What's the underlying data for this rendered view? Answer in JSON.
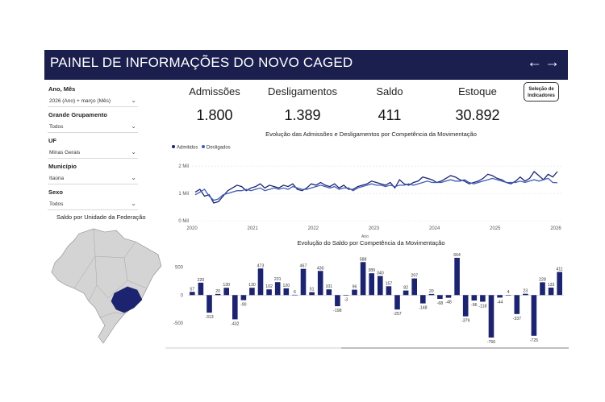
{
  "header": {
    "title": "PAINEL DE INFORMAÇÕES DO NOVO CAGED",
    "back_icon": "←",
    "forward_icon": "→"
  },
  "filters": [
    {
      "label": "Ano, Mês",
      "value": "2026 (Ano) + março (Mês)"
    },
    {
      "label": "Grande Grupamento",
      "value": "Todos"
    },
    {
      "label": "UF",
      "value": "Minas Gerais"
    },
    {
      "label": "Município",
      "value": "Itaúna"
    },
    {
      "label": "Sexo",
      "value": "Todos"
    }
  ],
  "map": {
    "title": "Saldo por Unidade da Federação"
  },
  "kpis": [
    {
      "label": "Admissões",
      "value": "1.800"
    },
    {
      "label": "Desligamentos",
      "value": "1.389"
    },
    {
      "label": "Saldo",
      "value": "411"
    },
    {
      "label": "Estoque",
      "value": "30.892"
    }
  ],
  "selection_button": {
    "label_line1": "Seleção de",
    "label_line2": "Indicadores"
  },
  "colors": {
    "header": "#1a1f4e",
    "admitidos": "#1c2470",
    "desligados": "#3f5cb8",
    "bar": "#1c2470",
    "map_fill": "#d4d4d4",
    "map_highlight": "#1c2470"
  },
  "chart_data": [
    {
      "type": "line",
      "title": "Evolução das Admissões e Desligamentos por Competência da Movimentação",
      "xlabel": "Ano",
      "ylabel": "",
      "x_ticks": [
        "2020",
        "2021",
        "2022",
        "2023",
        "2024",
        "2025",
        "2026"
      ],
      "y_ticks": [
        "0 Mil",
        "1 Mil",
        "2 Mil"
      ],
      "ylim": [
        0,
        2300
      ],
      "x_start": "2020-01",
      "x_end": "2026-03",
      "legend": "top-left",
      "series": [
        {
          "name": "Admitidos",
          "values": [
            1050,
            1150,
            900,
            950,
            650,
            700,
            900,
            1100,
            1200,
            1300,
            1250,
            1100,
            1200,
            1250,
            1350,
            1200,
            1300,
            1250,
            1200,
            1300,
            1250,
            1350,
            1150,
            1100,
            1200,
            1350,
            1300,
            1400,
            1300,
            1250,
            1350,
            1200,
            1300,
            1150,
            1150,
            1250,
            1300,
            1350,
            1450,
            1400,
            1350,
            1300,
            1400,
            1200,
            1500,
            1350,
            1300,
            1400,
            1450,
            1600,
            1550,
            1500,
            1400,
            1450,
            1550,
            1650,
            1600,
            1500,
            1450,
            1350,
            1400,
            1450,
            1550,
            1700,
            1650,
            1550,
            1500,
            1400,
            1350,
            1450,
            1600,
            1450,
            1550,
            1800,
            1650,
            1500,
            1700,
            1600,
            1800
          ]
        },
        {
          "name": "Desligados",
          "values": [
            950,
            1050,
            1150,
            900,
            750,
            800,
            950,
            1000,
            1050,
            1100,
            1100,
            1150,
            1100,
            1150,
            1200,
            1100,
            1150,
            1200,
            1150,
            1200,
            1150,
            1250,
            1200,
            1150,
            1150,
            1200,
            1250,
            1300,
            1250,
            1200,
            1250,
            1150,
            1200,
            1200,
            1100,
            1200,
            1250,
            1300,
            1350,
            1300,
            1300,
            1250,
            1300,
            1250,
            1300,
            1300,
            1350,
            1300,
            1350,
            1400,
            1450,
            1400,
            1400,
            1400,
            1450,
            1500,
            1450,
            1450,
            1500,
            1400,
            1350,
            1400,
            1450,
            1500,
            1550,
            1500,
            1450,
            1400,
            1400,
            1400,
            1450,
            1400,
            1450,
            1500,
            1450,
            1500,
            1550,
            1400,
            1389
          ]
        }
      ]
    },
    {
      "type": "bar",
      "title": "Evolução do Saldo por Competência da Movimentação",
      "xlabel": "",
      "ylabel": "",
      "y_ticks": [
        500,
        0,
        -500
      ],
      "ylim": [
        -900,
        750
      ],
      "values": [
        57,
        220,
        -313,
        20,
        130,
        -432,
        -90,
        130,
        473,
        102,
        231,
        120,
        6,
        467,
        51,
        430,
        101,
        -198,
        -3,
        96,
        588,
        389,
        340,
        157,
        -257,
        82,
        297,
        -148,
        20,
        -68,
        -48,
        664,
        -379,
        -96,
        -118,
        -756,
        -44,
        4,
        -337,
        23,
        -725,
        228,
        133,
        411
      ]
    }
  ]
}
